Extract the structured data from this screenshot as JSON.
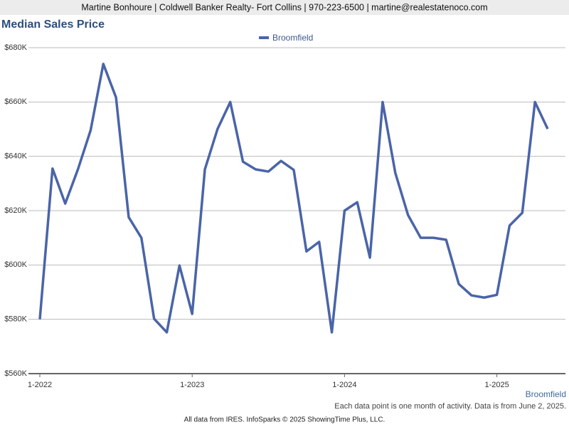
{
  "header": "Martine Bonhoure | Coldwell Banker Realty- Fort Collins | 970-223-6500 | martine@realestatenoco.com",
  "chart_data": {
    "type": "line",
    "title": "Median Sales Price",
    "categories": [
      "1-2022",
      null,
      null,
      null,
      null,
      null,
      null,
      null,
      null,
      null,
      null,
      null,
      "1-2023",
      null,
      null,
      null,
      null,
      null,
      null,
      null,
      null,
      null,
      null,
      null,
      "1-2024",
      null,
      null,
      null,
      null,
      null,
      null,
      null,
      null,
      null,
      null,
      null,
      "1-2025",
      null,
      null,
      null,
      null
    ],
    "series": [
      {
        "name": "Broomfield",
        "color": "#4a64a8",
        "values": [
          580000,
          635500,
          622600,
          635200,
          649600,
          674000,
          661700,
          617600,
          610000,
          580200,
          575200,
          599800,
          582000,
          635200,
          650100,
          660000,
          638000,
          635200,
          634400,
          638300,
          635000,
          605000,
          608500,
          575200,
          620000,
          623100,
          602700,
          660000,
          633900,
          618400,
          610000,
          610000,
          609300,
          593000,
          588800,
          588000,
          589000,
          614500,
          619200,
          660000,
          650100
        ]
      }
    ],
    "ylim": [
      560000,
      680000
    ],
    "yticks": [
      {
        "value": 560000,
        "label": "$560K"
      },
      {
        "value": 580000,
        "label": "$580K"
      },
      {
        "value": 600000,
        "label": "$600K"
      },
      {
        "value": 620000,
        "label": "$620K"
      },
      {
        "value": 640000,
        "label": "$640K"
      },
      {
        "value": 660000,
        "label": "$660K"
      },
      {
        "value": 680000,
        "label": "$680K"
      }
    ],
    "grid": true,
    "legend": "top",
    "corner_label": "Broomfield",
    "note": "Each data point is one month of activity. Data is from June 2, 2025."
  },
  "footer": "All data from IRES. InfoSparks © 2025 ShowingTime Plus, LLC."
}
